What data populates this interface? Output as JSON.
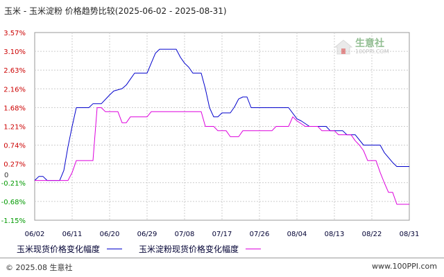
{
  "title": "玉米 - 玉米淀粉 价格趋势比较(2025-06-02 - 2025-08-31)",
  "footer": {
    "left": "© 2025.08 生意社",
    "right": "www.100PPI.com"
  },
  "watermark": {
    "name": "生意社",
    "url": "100PPI.COM"
  },
  "colors": {
    "series1": "#0000cc",
    "series2": "#dd00dd",
    "grid": "#cccccc",
    "tick_positive": "#cc0000",
    "tick_negative": "#009900",
    "tick_zero": "#333333"
  },
  "chart_data": {
    "type": "line",
    "title": "玉米 - 玉米淀粉 价格趋势比较(2025-06-02 - 2025-08-31)",
    "xlabel": "",
    "ylabel": "",
    "x_ticks": [
      "06/02",
      "06/11",
      "06/20",
      "06/29",
      "07/08",
      "07/17",
      "07/26",
      "08/04",
      "08/13",
      "08/22",
      "08/31"
    ],
    "y_ticks": [
      "3.57%",
      "3.10%",
      "2.63%",
      "2.16%",
      "1.68%",
      "1.21%",
      "0.74%",
      "0.27%",
      "-0.21%",
      "-0.68%",
      "-1.15%"
    ],
    "ylim": [
      -1.15,
      3.57
    ],
    "xlim": [
      "2025-06-02",
      "2025-08-31"
    ],
    "grid": true,
    "legend_position": "bottom",
    "series": [
      {
        "name": "玉米现货价格变化幅度",
        "color": "#0000cc",
        "points": [
          [
            "2025-06-02",
            -0.15
          ],
          [
            "2025-06-03",
            -0.05
          ],
          [
            "2025-06-04",
            -0.05
          ],
          [
            "2025-06-05",
            -0.15
          ],
          [
            "2025-06-08",
            -0.15
          ],
          [
            "2025-06-09",
            0.1
          ],
          [
            "2025-06-10",
            0.7
          ],
          [
            "2025-06-11",
            1.21
          ],
          [
            "2025-06-12",
            1.68
          ],
          [
            "2025-06-15",
            1.68
          ],
          [
            "2025-06-16",
            1.78
          ],
          [
            "2025-06-18",
            1.78
          ],
          [
            "2025-06-20",
            2.0
          ],
          [
            "2025-06-21",
            2.1
          ],
          [
            "2025-06-23",
            2.16
          ],
          [
            "2025-06-24",
            2.25
          ],
          [
            "2025-06-25",
            2.4
          ],
          [
            "2025-06-26",
            2.55
          ],
          [
            "2025-06-29",
            2.55
          ],
          [
            "2025-06-30",
            2.8
          ],
          [
            "2025-07-01",
            3.05
          ],
          [
            "2025-07-02",
            3.15
          ],
          [
            "2025-07-06",
            3.15
          ],
          [
            "2025-07-07",
            2.95
          ],
          [
            "2025-07-08",
            2.8
          ],
          [
            "2025-07-09",
            2.7
          ],
          [
            "2025-07-10",
            2.55
          ],
          [
            "2025-07-12",
            2.55
          ],
          [
            "2025-07-13",
            2.16
          ],
          [
            "2025-07-14",
            1.68
          ],
          [
            "2025-07-15",
            1.45
          ],
          [
            "2025-07-16",
            1.45
          ],
          [
            "2025-07-17",
            1.55
          ],
          [
            "2025-07-19",
            1.55
          ],
          [
            "2025-07-20",
            1.7
          ],
          [
            "2025-07-21",
            1.9
          ],
          [
            "2025-07-22",
            1.95
          ],
          [
            "2025-07-23",
            1.95
          ],
          [
            "2025-07-24",
            1.68
          ],
          [
            "2025-08-02",
            1.68
          ],
          [
            "2025-08-04",
            1.4
          ],
          [
            "2025-08-05",
            1.35
          ],
          [
            "2025-08-07",
            1.21
          ],
          [
            "2025-08-11",
            1.21
          ],
          [
            "2025-08-12",
            1.1
          ],
          [
            "2025-08-15",
            1.1
          ],
          [
            "2025-08-16",
            1.0
          ],
          [
            "2025-08-18",
            1.0
          ],
          [
            "2025-08-20",
            0.74
          ],
          [
            "2025-08-24",
            0.74
          ],
          [
            "2025-08-25",
            0.55
          ],
          [
            "2025-08-27",
            0.3
          ],
          [
            "2025-08-28",
            0.2
          ],
          [
            "2025-08-31",
            0.2
          ]
        ]
      },
      {
        "name": "玉米淀粉现货价格变化幅度",
        "color": "#dd00dd",
        "points": [
          [
            "2025-06-02",
            -0.15
          ],
          [
            "2025-06-10",
            -0.15
          ],
          [
            "2025-06-11",
            0.05
          ],
          [
            "2025-06-12",
            0.35
          ],
          [
            "2025-06-16",
            0.35
          ],
          [
            "2025-06-17",
            1.68
          ],
          [
            "2025-06-18",
            1.68
          ],
          [
            "2025-06-19",
            1.58
          ],
          [
            "2025-06-22",
            1.58
          ],
          [
            "2025-06-23",
            1.3
          ],
          [
            "2025-06-24",
            1.3
          ],
          [
            "2025-06-25",
            1.45
          ],
          [
            "2025-06-29",
            1.45
          ],
          [
            "2025-06-30",
            1.58
          ],
          [
            "2025-07-12",
            1.58
          ],
          [
            "2025-07-13",
            1.21
          ],
          [
            "2025-07-15",
            1.21
          ],
          [
            "2025-07-16",
            1.1
          ],
          [
            "2025-07-18",
            1.1
          ],
          [
            "2025-07-19",
            0.95
          ],
          [
            "2025-07-21",
            0.95
          ],
          [
            "2025-07-22",
            1.1
          ],
          [
            "2025-07-29",
            1.1
          ],
          [
            "2025-07-30",
            1.21
          ],
          [
            "2025-08-02",
            1.21
          ],
          [
            "2025-08-03",
            1.45
          ],
          [
            "2025-08-04",
            1.35
          ],
          [
            "2025-08-06",
            1.21
          ],
          [
            "2025-08-09",
            1.21
          ],
          [
            "2025-08-10",
            1.1
          ],
          [
            "2025-08-13",
            1.1
          ],
          [
            "2025-08-14",
            1.0
          ],
          [
            "2025-08-17",
            1.0
          ],
          [
            "2025-08-18",
            0.85
          ],
          [
            "2025-08-19",
            0.74
          ],
          [
            "2025-08-20",
            0.6
          ],
          [
            "2025-08-21",
            0.35
          ],
          [
            "2025-08-23",
            0.35
          ],
          [
            "2025-08-24",
            0.05
          ],
          [
            "2025-08-25",
            -0.21
          ],
          [
            "2025-08-26",
            -0.45
          ],
          [
            "2025-08-27",
            -0.45
          ],
          [
            "2025-08-28",
            -0.75
          ],
          [
            "2025-08-31",
            -0.75
          ]
        ]
      }
    ]
  }
}
